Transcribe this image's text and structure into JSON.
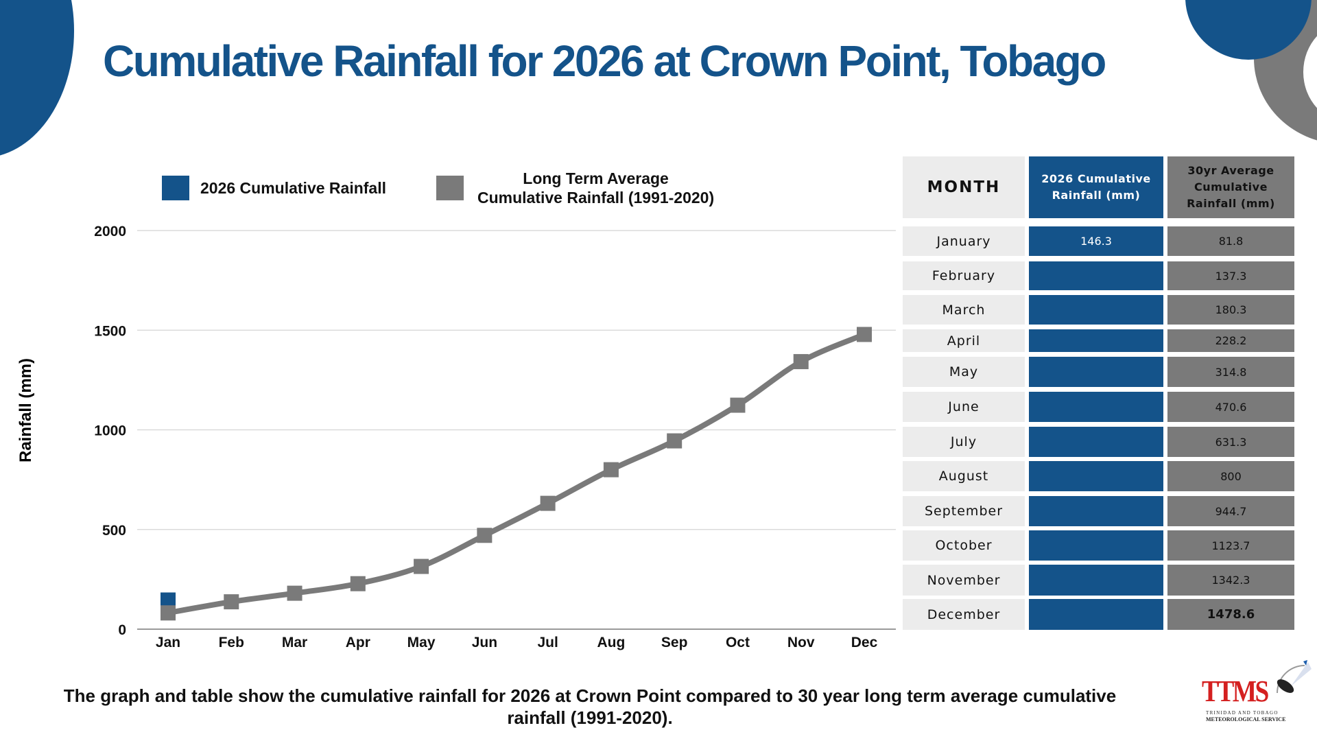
{
  "title": "Cumulative Rainfall for 2026 at Crown Point, Tobago",
  "legend": {
    "series_2026": "2026 Cumulative Rainfall",
    "series_avg_line1": "Long Term Average",
    "series_avg_line2": "Cumulative Rainfall (1991-2020)"
  },
  "colors": {
    "blue": "#14538a",
    "gray": "#7a7a7a",
    "light_gray": "#ececec"
  },
  "chart_data": {
    "type": "line",
    "title": "Cumulative Rainfall for 2026 at Crown Point, Tobago",
    "xlabel": "",
    "ylabel": "Rainfall  (mm)",
    "ylim": [
      0,
      2000
    ],
    "yticks": [
      0,
      500,
      1000,
      1500,
      2000
    ],
    "grid": true,
    "legend_position": "top",
    "categories": [
      "Jan",
      "Feb",
      "Mar",
      "Apr",
      "May",
      "Jun",
      "Jul",
      "Aug",
      "Sep",
      "Oct",
      "Nov",
      "Dec"
    ],
    "series": [
      {
        "name": "2026 Cumulative Rainfall",
        "color": "#14538a",
        "values": [
          146.3,
          null,
          null,
          null,
          null,
          null,
          null,
          null,
          null,
          null,
          null,
          null
        ]
      },
      {
        "name": "Long Term Average Cumulative Rainfall (1991-2020)",
        "color": "#7a7a7a",
        "values": [
          81.8,
          137.3,
          180.3,
          228.2,
          314.8,
          470.6,
          631.3,
          800,
          944.7,
          1123.7,
          1342.3,
          1478.6
        ]
      }
    ]
  },
  "table": {
    "headers": {
      "month": "MONTH",
      "col_2026_line1": "2026 Cumulative",
      "col_2026_line2": "Rainfall (mm)",
      "col_avg_line1": "30yr Average",
      "col_avg_line2": "Cumulative",
      "col_avg_line3": "Rainfall (mm)"
    },
    "rows": [
      {
        "month": "January",
        "v2026": "146.3",
        "avg": "81.8"
      },
      {
        "month": "February",
        "v2026": "",
        "avg": "137.3"
      },
      {
        "month": "March",
        "v2026": "",
        "avg": "180.3"
      },
      {
        "month": "April",
        "v2026": "",
        "avg": "228.2"
      },
      {
        "month": "May",
        "v2026": "",
        "avg": "314.8"
      },
      {
        "month": "June",
        "v2026": "",
        "avg": "470.6"
      },
      {
        "month": "July",
        "v2026": "",
        "avg": "631.3"
      },
      {
        "month": "August",
        "v2026": "",
        "avg": "800"
      },
      {
        "month": "September",
        "v2026": "",
        "avg": "944.7"
      },
      {
        "month": "October",
        "v2026": "",
        "avg": "1123.7"
      },
      {
        "month": "November",
        "v2026": "",
        "avg": "1342.3"
      },
      {
        "month": "December",
        "v2026": "",
        "avg": "1478.6"
      }
    ]
  },
  "caption": "The graph and table show the cumulative rainfall for 2026 at Crown Point compared to 30 year long term average cumulative rainfall (1991-2020).",
  "logo": {
    "name": "TTMS",
    "line1": "TRINIDAD AND TOBAGO",
    "line2": "METEOROLOGICAL SERVICE"
  }
}
